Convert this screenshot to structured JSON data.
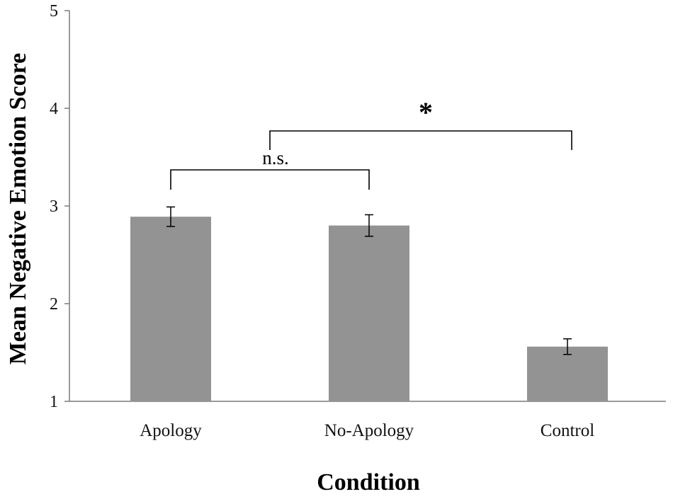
{
  "chart_data": {
    "type": "bar",
    "title": "",
    "xlabel": "Condition",
    "ylabel": "Mean Negative Emotion Score",
    "categories": [
      "Apology",
      "No-Apology",
      "Control"
    ],
    "values": [
      2.89,
      2.8,
      1.56
    ],
    "error": [
      0.1,
      0.11,
      0.08
    ],
    "ylim": [
      1,
      5
    ],
    "yticks": [
      "1",
      "2",
      "3",
      "4",
      "5"
    ],
    "bar_color": "#939393",
    "grid": false,
    "legend": "none",
    "annotations": [
      {
        "label": "n.s.",
        "from_category": "Apology",
        "to_category": "No-Apology"
      },
      {
        "label": "*",
        "from_category": "Apology / No-Apology",
        "to_category": "Control"
      }
    ]
  }
}
